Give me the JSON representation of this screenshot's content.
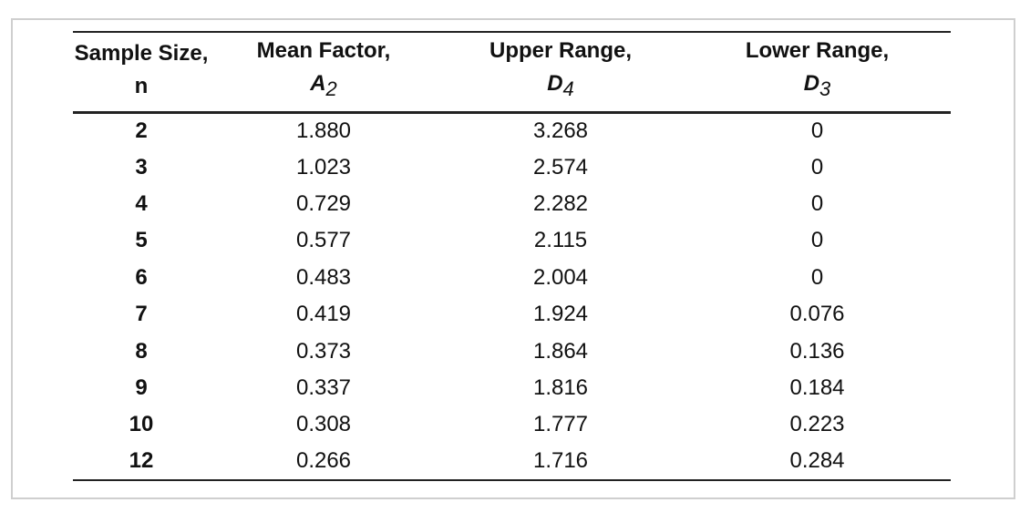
{
  "table": {
    "header": [
      {
        "text": "Sample Size, n"
      },
      {
        "text": "Mean Factor,",
        "symbol": "A",
        "sub": "2"
      },
      {
        "text": "Upper Range,",
        "symbol": "D",
        "sub": "4"
      },
      {
        "text": "Lower Range,",
        "symbol": "D",
        "sub": "3"
      }
    ],
    "rows": [
      [
        "2",
        "1.880",
        "3.268",
        "0"
      ],
      [
        "3",
        "1.023",
        "2.574",
        "0"
      ],
      [
        "4",
        "0.729",
        "2.282",
        "0"
      ],
      [
        "5",
        "0.577",
        "2.115",
        "0"
      ],
      [
        "6",
        "0.483",
        "2.004",
        "0"
      ],
      [
        "7",
        "0.419",
        "1.924",
        "0.076"
      ],
      [
        "8",
        "0.373",
        "1.864",
        "0.136"
      ],
      [
        "9",
        "0.337",
        "1.816",
        "0.184"
      ],
      [
        "10",
        "0.308",
        "1.777",
        "0.223"
      ],
      [
        "12",
        "0.266",
        "1.716",
        "0.284"
      ]
    ]
  }
}
